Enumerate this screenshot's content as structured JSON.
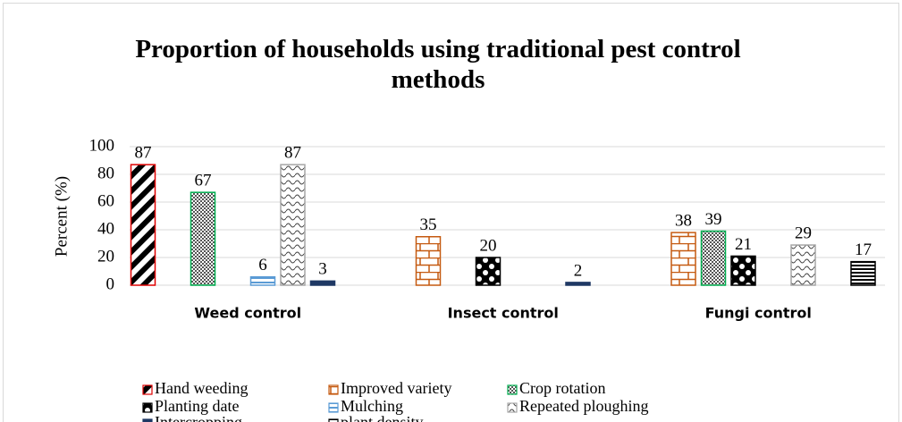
{
  "chart_data": {
    "type": "bar",
    "title": "Proportion of households using traditional pest control methods",
    "y_label": "Percent (%)",
    "categories": [
      "Weed control",
      "Insect control",
      "Fungi control"
    ],
    "series": [
      {
        "name": "Hand weeding",
        "color": "#e00000",
        "values": [
          87,
          null,
          null
        ]
      },
      {
        "name": "Improved variety",
        "color": "#c55a11",
        "values": [
          null,
          35,
          38
        ]
      },
      {
        "name": "Crop rotation",
        "color": "#00b050",
        "values": [
          67,
          null,
          39
        ]
      },
      {
        "name": "Planting date",
        "color": "#000000",
        "values": [
          null,
          20,
          21
        ]
      },
      {
        "name": "Mulching",
        "color": "#5b9bd5",
        "values": [
          6,
          null,
          null
        ]
      },
      {
        "name": "Repeated ploughing",
        "color": "#a6a6a6",
        "values": [
          87,
          null,
          29
        ]
      },
      {
        "name": "Intercropping",
        "color": "#1f3864",
        "values": [
          3,
          2,
          null
        ]
      },
      {
        "name": "plant density",
        "color": "#000000",
        "values": [
          null,
          null,
          17
        ]
      }
    ],
    "ylim": [
      0,
      100
    ],
    "yticks": [
      0,
      20,
      40,
      60,
      80,
      100
    ],
    "grid": true,
    "legend": "bottom"
  }
}
